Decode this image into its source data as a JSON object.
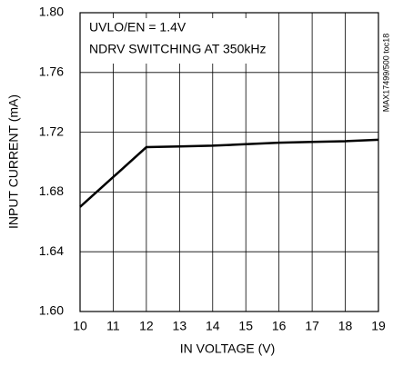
{
  "chart_data": {
    "type": "line",
    "annotations": [
      "UVLO/EN = 1.4V",
      "NDRV SWITCHING AT 350kHz"
    ],
    "side_label": "MAX17499/500 toc18",
    "xlabel": "IN VOLTAGE (V)",
    "ylabel": "INPUT CURRENT (mA)",
    "x": [
      10,
      12,
      13,
      14,
      15,
      16,
      17,
      18,
      19
    ],
    "series": [
      {
        "name": "Input current",
        "color": "#000000",
        "values": [
          1.67,
          1.71,
          1.7105,
          1.711,
          1.712,
          1.713,
          1.7135,
          1.714,
          1.715
        ]
      }
    ],
    "xlim": [
      10,
      19
    ],
    "xticks": [
      10,
      11,
      12,
      13,
      14,
      15,
      16,
      17,
      18,
      19
    ],
    "ylim": [
      1.6,
      1.8
    ],
    "yticks": [
      {
        "value": 1.6,
        "label": "1.60"
      },
      {
        "value": 1.64,
        "label": "1.64"
      },
      {
        "value": 1.68,
        "label": "1.68"
      },
      {
        "value": 1.72,
        "label": "1.72"
      },
      {
        "value": 1.76,
        "label": "1.76"
      },
      {
        "value": 1.8,
        "label": "1.80"
      }
    ],
    "grid": true
  }
}
